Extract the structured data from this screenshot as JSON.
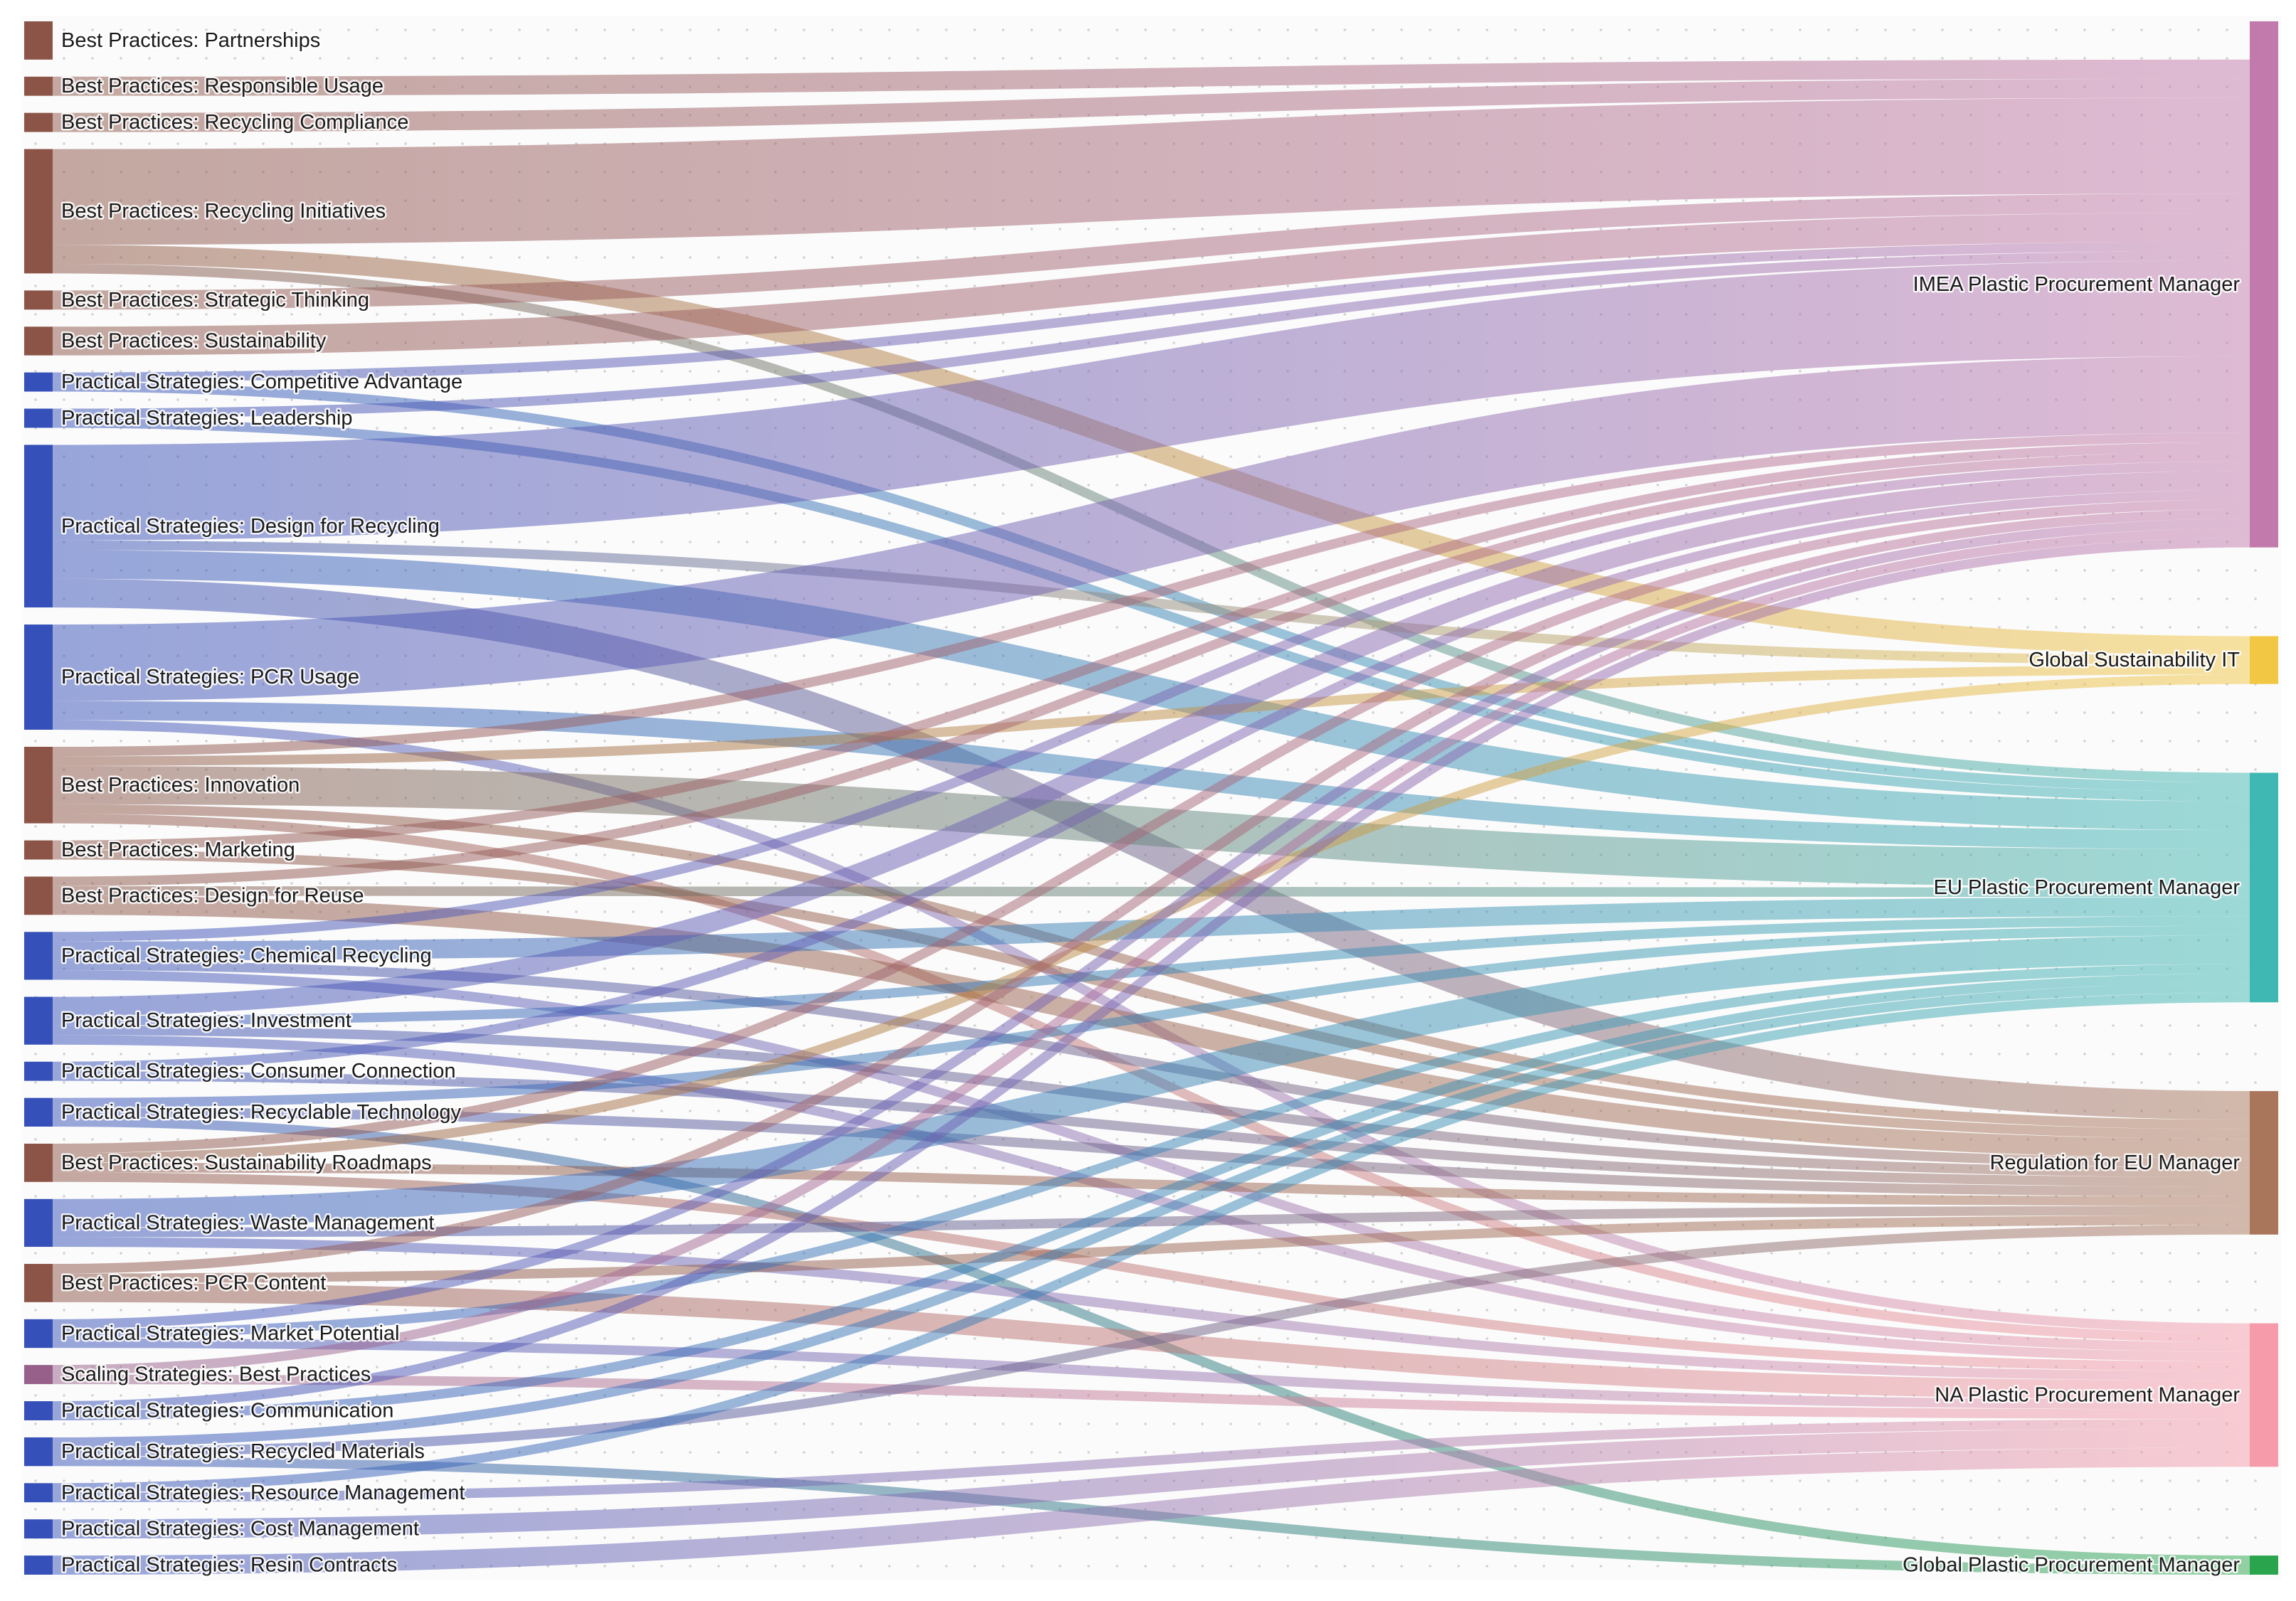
{
  "diagram": {
    "type": "sankey",
    "targets": [
      {
        "id": "imea",
        "label": "IMEA Plastic Procurement Manager",
        "color": "#c17aab"
      },
      {
        "id": "gsit",
        "label": "Global Sustainability IT",
        "color": "#f2c744"
      },
      {
        "id": "eu",
        "label": "EU Plastic Procurement Manager",
        "color": "#3fb7b2"
      },
      {
        "id": "reg",
        "label": "Regulation for EU Manager",
        "color": "#a9755b"
      },
      {
        "id": "na",
        "label": "NA Plastic Procurement Manager",
        "color": "#f59ba9"
      },
      {
        "id": "gppm",
        "label": "Global Plastic Procurement Manager",
        "color": "#2aa54d"
      }
    ],
    "sources": [
      {
        "label": "Best Practices: Partnerships",
        "color": "#8b5446",
        "links": [
          {
            "to": "imea",
            "value": 2
          }
        ]
      },
      {
        "label": "Best Practices: Responsible Usage",
        "color": "#8b5446",
        "links": [
          {
            "to": "imea",
            "value": 1
          }
        ]
      },
      {
        "label": "Best Practices: Recycling Compliance",
        "color": "#8b5446",
        "links": [
          {
            "to": "imea",
            "value": 1
          }
        ]
      },
      {
        "label": "Best Practices: Recycling Initiatives",
        "color": "#8b5446",
        "links": [
          {
            "to": "imea",
            "value": 5
          },
          {
            "to": "gsit",
            "value": 1
          },
          {
            "to": "eu",
            "value": 0.5
          }
        ]
      },
      {
        "label": "Best Practices: Strategic Thinking",
        "color": "#8b5446",
        "links": [
          {
            "to": "imea",
            "value": 1
          }
        ]
      },
      {
        "label": "Best Practices: Sustainability",
        "color": "#8b5446",
        "links": [
          {
            "to": "imea",
            "value": 1.5
          }
        ]
      },
      {
        "label": "Practical Strategies: Competitive Advantage",
        "color": "#3550b8",
        "links": [
          {
            "to": "imea",
            "value": 0.5
          },
          {
            "to": "eu",
            "value": 0.5
          }
        ]
      },
      {
        "label": "Practical Strategies: Leadership",
        "color": "#3550b8",
        "links": [
          {
            "to": "imea",
            "value": 0.5
          },
          {
            "to": "eu",
            "value": 0.5
          }
        ]
      },
      {
        "label": "Practical Strategies: Design for Recycling",
        "color": "#3550b8",
        "links": [
          {
            "to": "imea",
            "value": 5
          },
          {
            "to": "gsit",
            "value": 0.5
          },
          {
            "to": "eu",
            "value": 1.5
          },
          {
            "to": "reg",
            "value": 1.5
          }
        ]
      },
      {
        "label": "Practical Strategies: PCR Usage",
        "color": "#3550b8",
        "links": [
          {
            "to": "imea",
            "value": 4
          },
          {
            "to": "eu",
            "value": 1
          },
          {
            "to": "na",
            "value": 0.5
          }
        ]
      },
      {
        "label": "Best Practices: Innovation",
        "color": "#8b5446",
        "links": [
          {
            "to": "imea",
            "value": 0.5
          },
          {
            "to": "gsit",
            "value": 0.5
          },
          {
            "to": "eu",
            "value": 2
          },
          {
            "to": "reg",
            "value": 0.5
          },
          {
            "to": "na",
            "value": 0.5
          }
        ]
      },
      {
        "label": "Best Practices: Marketing",
        "color": "#8b5446",
        "links": [
          {
            "to": "imea",
            "value": 0.5
          },
          {
            "to": "reg",
            "value": 0.5
          }
        ]
      },
      {
        "label": "Best Practices: Design for Reuse",
        "color": "#8b5446",
        "links": [
          {
            "to": "imea",
            "value": 0.5
          },
          {
            "to": "eu",
            "value": 0.5
          },
          {
            "to": "reg",
            "value": 1
          }
        ]
      },
      {
        "label": "Practical Strategies: Chemical Recycling",
        "color": "#3550b8",
        "links": [
          {
            "to": "imea",
            "value": 0.5
          },
          {
            "to": "eu",
            "value": 1
          },
          {
            "to": "reg",
            "value": 0.5
          },
          {
            "to": "na",
            "value": 0.5
          }
        ]
      },
      {
        "label": "Practical Strategies: Investment",
        "color": "#3550b8",
        "links": [
          {
            "to": "imea",
            "value": 1
          },
          {
            "to": "eu",
            "value": 0.5
          },
          {
            "to": "reg",
            "value": 0.5
          },
          {
            "to": "na",
            "value": 0.5
          }
        ]
      },
      {
        "label": "Practical Strategies: Consumer Connection",
        "color": "#3550b8",
        "links": [
          {
            "to": "imea",
            "value": 0.5
          },
          {
            "to": "reg",
            "value": 0.5
          }
        ]
      },
      {
        "label": "Practical Strategies: Recyclable Technology",
        "color": "#3550b8",
        "links": [
          {
            "to": "eu",
            "value": 0.5
          },
          {
            "to": "reg",
            "value": 0.5
          },
          {
            "to": "gppm",
            "value": 0.5
          }
        ]
      },
      {
        "label": "Best Practices: Sustainability Roadmaps",
        "color": "#8b5446",
        "links": [
          {
            "to": "imea",
            "value": 0.5
          },
          {
            "to": "gsit",
            "value": 0.5
          },
          {
            "to": "reg",
            "value": 0.5
          },
          {
            "to": "na",
            "value": 0.5
          }
        ]
      },
      {
        "label": "Practical Strategies: Waste Management",
        "color": "#3550b8",
        "links": [
          {
            "to": "eu",
            "value": 1.5
          },
          {
            "to": "reg",
            "value": 0.5
          },
          {
            "to": "na",
            "value": 0.5
          }
        ]
      },
      {
        "label": "Best Practices: PCR Content",
        "color": "#8b5446",
        "links": [
          {
            "to": "imea",
            "value": 0.5
          },
          {
            "to": "reg",
            "value": 0.5
          },
          {
            "to": "na",
            "value": 1
          }
        ]
      },
      {
        "label": "Practical Strategies: Market Potential",
        "color": "#3550b8",
        "links": [
          {
            "to": "imea",
            "value": 0.5
          },
          {
            "to": "eu",
            "value": 0.5
          },
          {
            "to": "na",
            "value": 0.5
          }
        ]
      },
      {
        "label": "Scaling Strategies: Best Practices",
        "color": "#96608a",
        "links": [
          {
            "to": "imea",
            "value": 0.5
          },
          {
            "to": "na",
            "value": 0.5
          }
        ]
      },
      {
        "label": "Practical Strategies: Communication",
        "color": "#3550b8",
        "links": [
          {
            "to": "imea",
            "value": 0.5
          },
          {
            "to": "eu",
            "value": 0.5
          }
        ]
      },
      {
        "label": "Practical Strategies: Recycled Materials",
        "color": "#3550b8",
        "links": [
          {
            "to": "eu",
            "value": 0.5
          },
          {
            "to": "reg",
            "value": 0.5
          },
          {
            "to": "gppm",
            "value": 0.5
          }
        ]
      },
      {
        "label": "Practical Strategies: Resource Management",
        "color": "#3550b8",
        "links": [
          {
            "to": "eu",
            "value": 0.5
          },
          {
            "to": "na",
            "value": 0.5
          }
        ]
      },
      {
        "label": "Practical Strategies: Cost Management",
        "color": "#3550b8",
        "links": [
          {
            "to": "na",
            "value": 1
          }
        ]
      },
      {
        "label": "Practical Strategies: Resin Contracts",
        "color": "#3550b8",
        "links": [
          {
            "to": "na",
            "value": 1
          }
        ]
      }
    ]
  }
}
